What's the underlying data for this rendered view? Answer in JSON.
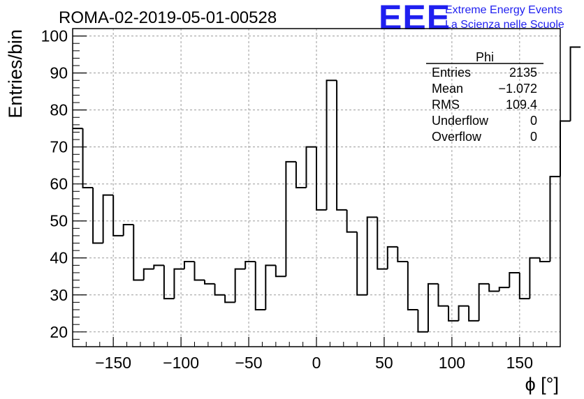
{
  "header": {
    "run_title": "ROMA-02-2019-05-01-00528",
    "logo_text": "EEE",
    "logo_line1": "Extreme Energy Events",
    "logo_line2": "La Scienza nelle Scuole",
    "logo_color": "#1f1ff0"
  },
  "stats_box": {
    "title": "Phi",
    "rows": [
      {
        "label": "Entries",
        "value": "2135"
      },
      {
        "label": "Mean",
        "value": "−1.072"
      },
      {
        "label": "RMS",
        "value": "109.4"
      },
      {
        "label": "Underflow",
        "value": "0"
      },
      {
        "label": "Overflow",
        "value": "0"
      }
    ]
  },
  "chart_data": {
    "type": "histogram",
    "title": "ROMA-02-2019-05-01-00528",
    "xlabel": "ϕ [°]",
    "ylabel": "Entries/bin",
    "xlim": [
      -180,
      180
    ],
    "ylim": [
      16,
      102
    ],
    "bin_width": 7.5,
    "bin_edges_start": -180,
    "values": [
      75,
      59,
      44,
      57,
      46,
      49,
      34,
      37,
      38,
      29,
      37,
      39,
      34,
      33,
      30,
      28,
      37,
      39,
      26,
      38,
      35,
      66,
      59,
      70,
      53,
      88,
      53,
      47,
      30,
      51,
      37,
      43,
      39,
      26,
      20,
      33,
      27,
      23,
      27,
      23,
      33,
      31,
      32,
      36,
      29,
      40,
      39,
      62,
      77,
      97
    ],
    "xticks": [
      -150,
      -100,
      -50,
      0,
      50,
      100,
      150
    ],
    "xtick_labels": [
      "−150",
      "−100",
      "−50",
      "0",
      "50",
      "100",
      "150"
    ],
    "yticks": [
      20,
      30,
      40,
      50,
      60,
      70,
      80,
      90,
      100
    ],
    "ytick_labels": [
      "20",
      "30",
      "40",
      "50",
      "60",
      "70",
      "80",
      "90",
      "100"
    ],
    "grid": true,
    "line_color": "#000000"
  }
}
